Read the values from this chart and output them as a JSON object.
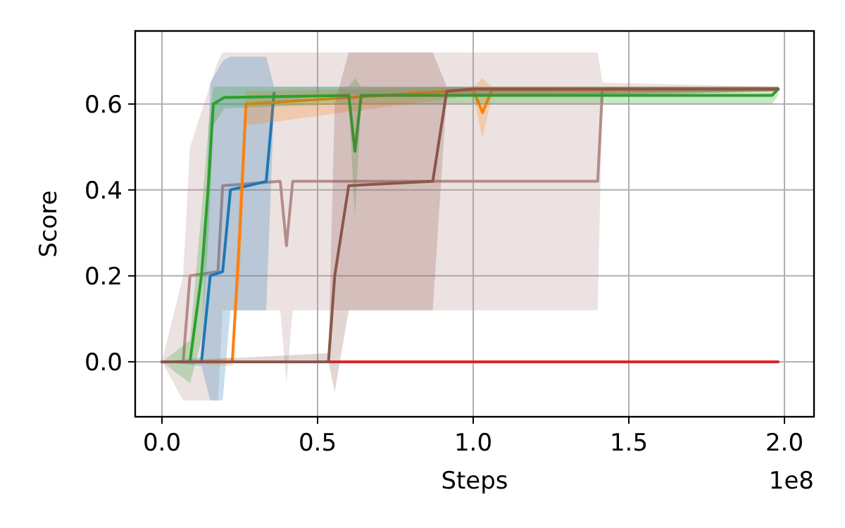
{
  "chart_data": {
    "type": "line",
    "xlabel": "Steps",
    "ylabel": "Score",
    "annotations": [
      "1e8"
    ],
    "grid": true,
    "marker": "none",
    "line_style": "solid",
    "xlim": [
      -0.086,
      2.095
    ],
    "ylim": [
      -0.128,
      0.77
    ],
    "xticks": [
      {
        "value": 0,
        "label": "0.0"
      },
      {
        "value": 0.5,
        "label": "0.5"
      },
      {
        "value": 1,
        "label": "1.0"
      },
      {
        "value": 1.5,
        "label": "1.5"
      },
      {
        "value": 2,
        "label": "2.0"
      }
    ],
    "yticks": [
      {
        "value": 0,
        "label": "0.0"
      },
      {
        "value": 0.2,
        "label": "0.2"
      },
      {
        "value": 0.4,
        "label": "0.4"
      },
      {
        "value": 0.6,
        "label": "0.6"
      }
    ],
    "series": [
      {
        "color": "#b48c8a",
        "x": [
          0,
          0.068,
          0.09,
          0.18,
          0.195,
          0.38,
          0.4,
          0.42,
          1.4,
          1.415,
          1.98
        ],
        "values": [
          0,
          0,
          0.2,
          0.21,
          0.41,
          0.42,
          0.27,
          0.42,
          0.42,
          0.635,
          0.635
        ],
        "lower": [
          0,
          -0.09,
          -0.09,
          -0.09,
          0.12,
          0.12,
          -0.05,
          0.12,
          0.12,
          0.62,
          0.63
        ],
        "upper": [
          0,
          0.2,
          0.5,
          0.7,
          0.72,
          0.72,
          0.72,
          0.72,
          0.72,
          0.65,
          0.64
        ]
      },
      {
        "color": "#1f77b4",
        "x": [
          0,
          0.127,
          0.155,
          0.195,
          0.22,
          0.335,
          0.36,
          0.5,
          1,
          1.5,
          1.98
        ],
        "values": [
          0,
          0,
          0.2,
          0.21,
          0.4,
          0.42,
          0.625,
          null,
          null,
          null,
          null
        ],
        "lower": [
          0,
          -0.01,
          -0.09,
          -0.09,
          0.12,
          0.12,
          0.6,
          0.62,
          0.62,
          0.62,
          0.63
        ],
        "upper": [
          0,
          0.01,
          0.65,
          0.7,
          0.71,
          0.71,
          0.64,
          0.64,
          0.64,
          0.64,
          0.64
        ]
      },
      {
        "color": "#ff7f0e",
        "x": [
          0,
          0.226,
          0.25,
          0.27,
          1,
          1.03,
          1.06,
          1.98
        ],
        "values": [
          0,
          0,
          0.3,
          0.6,
          0.633,
          0.58,
          0.633,
          0.635
        ],
        "lower": [
          0,
          -0.01,
          0.2,
          0.55,
          0.62,
          0.52,
          0.62,
          0.63
        ],
        "upper": [
          0,
          0.01,
          0.4,
          0.63,
          0.64,
          0.66,
          0.64,
          0.64
        ]
      },
      {
        "color": "#2ca02c",
        "x": [
          0,
          0.09,
          0.127,
          0.15,
          0.165,
          0.2,
          0.6,
          0.62,
          0.64,
          1.96,
          1.98
        ],
        "values": [
          0,
          0,
          0.2,
          0.42,
          0.6,
          0.615,
          0.62,
          0.49,
          0.62,
          0.62,
          0.635
        ],
        "lower": [
          0,
          -0.05,
          0.05,
          0.3,
          0.55,
          0.59,
          0.6,
          0.34,
          0.6,
          0.6,
          0.62
        ],
        "upper": [
          0,
          0.05,
          0.35,
          0.55,
          0.64,
          0.64,
          0.64,
          0.66,
          0.64,
          0.64,
          0.64
        ]
      },
      {
        "color": "#d62728",
        "x": [
          0,
          1.98
        ],
        "values": [
          0,
          0
        ]
      },
      {
        "color": "#8c564b",
        "x": [
          0,
          0.535,
          0.555,
          0.6,
          0.87,
          0.915,
          1,
          1.98
        ],
        "values": [
          0,
          0,
          0.2,
          0.41,
          0.42,
          0.63,
          0.635,
          0.635
        ],
        "lower": [
          0,
          0,
          -0.07,
          0.12,
          0.12,
          0.62,
          0.62,
          0.63
        ],
        "upper": [
          0,
          0.02,
          0.6,
          0.72,
          0.72,
          0.64,
          0.64,
          0.64
        ]
      }
    ]
  }
}
